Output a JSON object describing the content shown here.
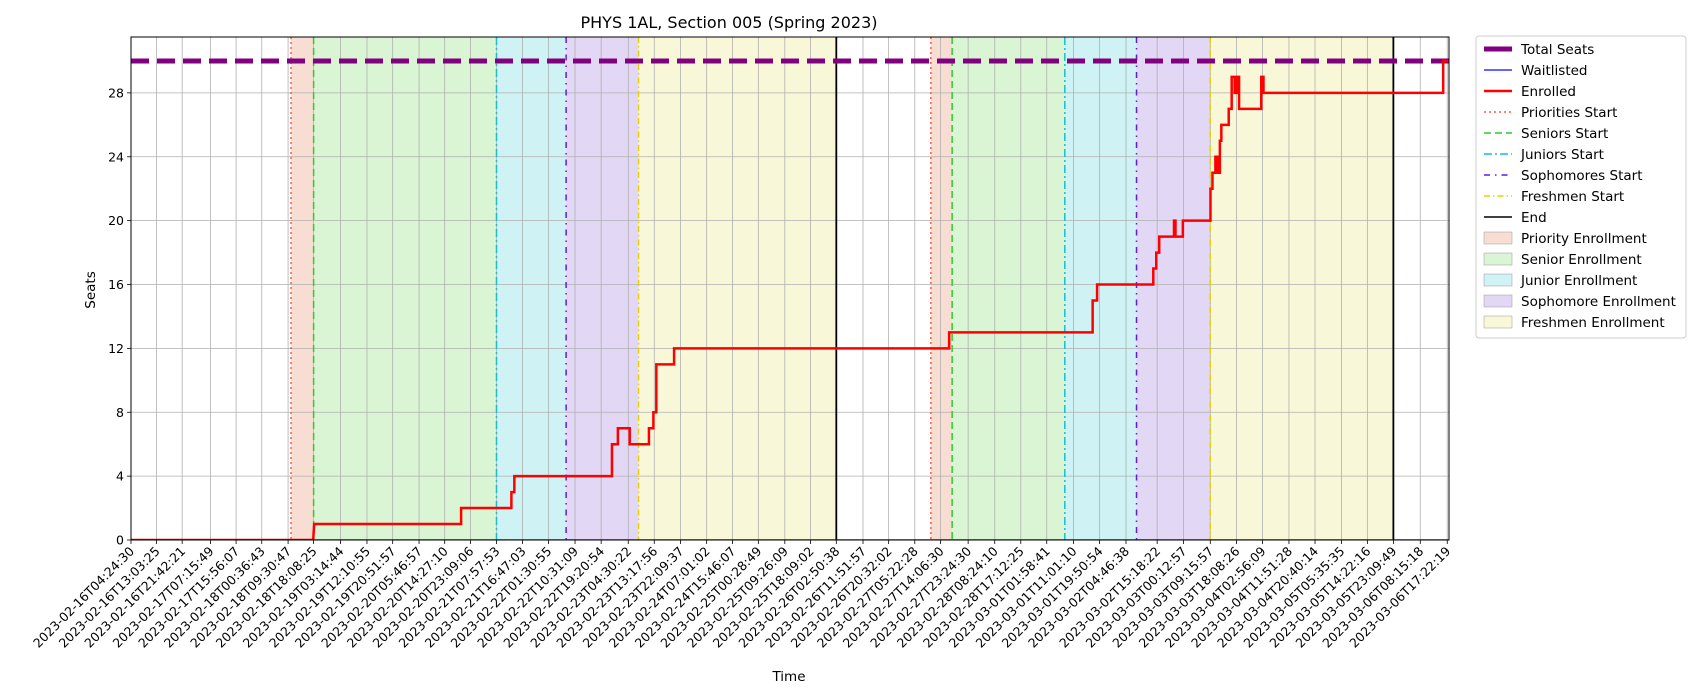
{
  "chart_data": {
    "type": "line",
    "title": "PHYS 1AL, Section 005 (Spring 2023)",
    "xlabel": "Time",
    "ylabel": "Seats",
    "ylim": [
      0,
      31.5
    ],
    "yticks": [
      0,
      4,
      8,
      12,
      16,
      20,
      24,
      28
    ],
    "grid": true,
    "legend_position": "outside-right",
    "x_start": "2023-02-16T04:24:30",
    "x_end": "2023-03-06T17:58:00",
    "x_tick_labels": [
      "2023-02-16T04:24:30",
      "2023-02-16T13:03:25",
      "2023-02-16T21:42:21",
      "2023-02-17T07:15:49",
      "2023-02-17T15:56:07",
      "2023-02-18T00:36:43",
      "2023-02-18T09:30:47",
      "2023-02-18T18:08:25",
      "2023-02-19T03:14:44",
      "2023-02-19T12:10:55",
      "2023-02-19T20:51:57",
      "2023-02-20T05:46:57",
      "2023-02-20T14:27:10",
      "2023-02-20T23:09:06",
      "2023-02-21T07:57:53",
      "2023-02-21T16:47:03",
      "2023-02-22T01:30:55",
      "2023-02-22T10:31:09",
      "2023-02-22T19:20:54",
      "2023-02-23T04:30:22",
      "2023-02-23T13:17:56",
      "2023-02-23T22:09:37",
      "2023-02-24T07:01:02",
      "2023-02-24T15:46:07",
      "2023-02-25T00:28:49",
      "2023-02-25T09:26:09",
      "2023-02-25T18:09:02",
      "2023-02-26T02:50:38",
      "2023-02-26T11:51:57",
      "2023-02-26T20:32:02",
      "2023-02-27T05:22:28",
      "2023-02-27T14:06:30",
      "2023-02-27T23:24:30",
      "2023-02-28T08:24:10",
      "2023-02-28T17:12:25",
      "2023-03-01T01:58:41",
      "2023-03-01T11:01:10",
      "2023-03-01T19:50:54",
      "2023-03-02T04:46:38",
      "2023-03-02T15:18:22",
      "2023-03-03T00:12:57",
      "2023-03-03T09:15:57",
      "2023-03-03T18:08:26",
      "2023-03-04T02:56:09",
      "2023-03-04T11:51:28",
      "2023-03-04T20:40:14",
      "2023-03-05T05:35:35",
      "2023-03-05T14:22:16",
      "2023-03-05T23:09:49",
      "2023-03-06T08:15:18",
      "2023-03-06T17:22:19"
    ],
    "shaded_regions": [
      {
        "label": "Priority Enrollment",
        "color": "#f8ddd2",
        "ranges": [
          [
            "2023-02-18T10:30:00",
            "2023-02-18T18:08:25"
          ],
          [
            "2023-02-27T10:48:00",
            "2023-02-27T18:00:00"
          ]
        ]
      },
      {
        "label": "Senior Enrollment",
        "color": "#d9f5d3",
        "ranges": [
          [
            "2023-02-18T18:08:25",
            "2023-02-21T07:57:53"
          ],
          [
            "2023-02-27T18:00:00",
            "2023-03-01T08:05:00"
          ]
        ]
      },
      {
        "label": "Junior Enrollment",
        "color": "#cff2f4",
        "ranges": [
          [
            "2023-02-21T07:57:53",
            "2023-02-22T07:30:00"
          ],
          [
            "2023-03-01T08:05:00",
            "2023-03-02T08:20:00"
          ]
        ]
      },
      {
        "label": "Sophomore Enrollment",
        "color": "#e2d7f4",
        "ranges": [
          [
            "2023-02-22T07:30:00",
            "2023-02-23T08:00:00"
          ],
          [
            "2023-03-02T08:20:00",
            "2023-03-03T09:15:57"
          ]
        ]
      },
      {
        "label": "Freshmen Enrollment",
        "color": "#f8f8d8",
        "ranges": [
          [
            "2023-02-23T08:00:00",
            "2023-02-26T02:50:38"
          ],
          [
            "2023-03-03T09:15:57",
            "2023-03-05T23:09:49"
          ]
        ]
      }
    ],
    "vertical_lines": [
      {
        "label": "Priorities Start",
        "color": "#ff5a3c",
        "dash": "2,3",
        "x": [
          "2023-02-18T10:30:00",
          "2023-02-27T10:48:00"
        ]
      },
      {
        "label": "Seniors Start",
        "color": "#2ecc2e",
        "dash": "7,4",
        "x": [
          "2023-02-18T18:08:25",
          "2023-02-27T18:00:00"
        ]
      },
      {
        "label": "Juniors Start",
        "color": "#17becf",
        "dash": "8,3,2,3",
        "x": [
          "2023-02-21T07:57:53",
          "2023-03-01T08:05:00"
        ]
      },
      {
        "label": "Sophomores Start",
        "color": "#5a1ee6",
        "dash": "6,5,1.5,5",
        "x": [
          "2023-02-22T07:30:00",
          "2023-03-02T08:20:00"
        ]
      },
      {
        "label": "Freshmen Start",
        "color": "#e6d200",
        "dash": "6,3,1.5,3",
        "x": [
          "2023-02-23T08:00:00",
          "2023-03-03T09:15:57"
        ]
      },
      {
        "label": "End",
        "color": "#000000",
        "dash": "",
        "x": [
          "2023-02-26T02:50:38",
          "2023-03-05T23:09:49"
        ]
      }
    ],
    "series": [
      {
        "name": "Total Seats",
        "color": "#800080",
        "style": "dashed-thick",
        "points": [
          [
            "2023-02-16T04:24:30",
            30
          ],
          [
            "2023-03-06T17:58:00",
            30
          ]
        ]
      },
      {
        "name": "Waitlisted",
        "color": "#3030ff",
        "style": "solid-thin",
        "points": [
          [
            "2023-02-16T04:24:30",
            0
          ],
          [
            "2023-03-06T17:58:00",
            0
          ]
        ]
      },
      {
        "name": "Enrolled",
        "color": "#ff0000",
        "style": "step",
        "points": [
          [
            "2023-02-16T04:24:30",
            0
          ],
          [
            "2023-02-18T18:00:00",
            0
          ],
          [
            "2023-02-18T18:20:00",
            1
          ],
          [
            "2023-02-20T20:00:00",
            1
          ],
          [
            "2023-02-20T20:00:00",
            2
          ],
          [
            "2023-02-21T13:00:00",
            2
          ],
          [
            "2023-02-21T13:00:00",
            3
          ],
          [
            "2023-02-21T14:00:00",
            3
          ],
          [
            "2023-02-21T14:00:00",
            4
          ],
          [
            "2023-02-22T23:00:00",
            4
          ],
          [
            "2023-02-22T23:00:00",
            6
          ],
          [
            "2023-02-23T01:00:00",
            6
          ],
          [
            "2023-02-23T01:00:00",
            7
          ],
          [
            "2023-02-23T05:00:00",
            7
          ],
          [
            "2023-02-23T05:00:00",
            6
          ],
          [
            "2023-02-23T11:30:00",
            6
          ],
          [
            "2023-02-23T11:30:00",
            7
          ],
          [
            "2023-02-23T13:00:00",
            7
          ],
          [
            "2023-02-23T13:00:00",
            8
          ],
          [
            "2023-02-23T14:00:00",
            8
          ],
          [
            "2023-02-23T14:00:00",
            11
          ],
          [
            "2023-02-23T20:00:00",
            11
          ],
          [
            "2023-02-23T20:00:00",
            12
          ],
          [
            "2023-02-27T17:00:00",
            12
          ],
          [
            "2023-02-27T17:00:00",
            13
          ],
          [
            "2023-03-01T17:30:00",
            13
          ],
          [
            "2023-03-01T17:30:00",
            15
          ],
          [
            "2023-03-01T19:00:00",
            15
          ],
          [
            "2023-03-01T19:00:00",
            16
          ],
          [
            "2023-03-02T14:00:00",
            16
          ],
          [
            "2023-03-02T14:00:00",
            17
          ],
          [
            "2023-03-02T15:00:00",
            17
          ],
          [
            "2023-03-02T15:00:00",
            18
          ],
          [
            "2023-03-02T16:00:00",
            18
          ],
          [
            "2023-03-02T16:00:00",
            19
          ],
          [
            "2023-03-02T21:00:00",
            19
          ],
          [
            "2023-03-02T21:00:00",
            20
          ],
          [
            "2023-03-02T21:30:00",
            20
          ],
          [
            "2023-03-02T21:30:00",
            19
          ],
          [
            "2023-03-03T00:00:00",
            19
          ],
          [
            "2023-03-03T00:00:00",
            20
          ],
          [
            "2023-03-03T09:20:00",
            20
          ],
          [
            "2023-03-03T09:20:00",
            22
          ],
          [
            "2023-03-03T10:00:00",
            22
          ],
          [
            "2023-03-03T10:00:00",
            23
          ],
          [
            "2023-03-03T11:00:00",
            23
          ],
          [
            "2023-03-03T11:00:00",
            24
          ],
          [
            "2023-03-03T11:45:00",
            24
          ],
          [
            "2023-03-03T11:45:00",
            23
          ],
          [
            "2023-03-03T12:30:00",
            23
          ],
          [
            "2023-03-03T12:30:00",
            25
          ],
          [
            "2023-03-03T13:00:00",
            25
          ],
          [
            "2023-03-03T13:00:00",
            26
          ],
          [
            "2023-03-03T15:30:00",
            26
          ],
          [
            "2023-03-03T15:30:00",
            27
          ],
          [
            "2023-03-03T16:30:00",
            27
          ],
          [
            "2023-03-03T16:30:00",
            29
          ],
          [
            "2023-03-03T17:30:00",
            29
          ],
          [
            "2023-03-03T17:30:00",
            28
          ],
          [
            "2023-03-03T18:15:00",
            28
          ],
          [
            "2023-03-03T18:15:00",
            29
          ],
          [
            "2023-03-03T19:00:00",
            29
          ],
          [
            "2023-03-03T19:00:00",
            27
          ],
          [
            "2023-03-04T02:30:00",
            27
          ],
          [
            "2023-03-04T02:30:00",
            29
          ],
          [
            "2023-03-04T03:15:00",
            29
          ],
          [
            "2023-03-04T03:15:00",
            28
          ],
          [
            "2023-03-06T16:00:00",
            28
          ],
          [
            "2023-03-06T16:00:00",
            30
          ],
          [
            "2023-03-06T17:58:00",
            30
          ]
        ]
      }
    ],
    "legend": [
      {
        "label": "Total Seats",
        "kind": "line",
        "color": "#800080",
        "dash": "",
        "width": 5
      },
      {
        "label": "Waitlisted",
        "kind": "line",
        "color": "#3030ff",
        "dash": "",
        "width": 1.5
      },
      {
        "label": "Enrolled",
        "kind": "line",
        "color": "#ff0000",
        "dash": "",
        "width": 2.5
      },
      {
        "label": "Priorities Start",
        "kind": "line",
        "color": "#ff5a3c",
        "dash": "2,3",
        "width": 1.5
      },
      {
        "label": "Seniors Start",
        "kind": "line",
        "color": "#2ecc2e",
        "dash": "7,4",
        "width": 1.5
      },
      {
        "label": "Juniors Start",
        "kind": "line",
        "color": "#17becf",
        "dash": "8,3,2,3",
        "width": 1.5
      },
      {
        "label": "Sophomores Start",
        "kind": "line",
        "color": "#5a1ee6",
        "dash": "6,5,1.5,5",
        "width": 1.5
      },
      {
        "label": "Freshmen Start",
        "kind": "line",
        "color": "#e6d200",
        "dash": "6,3,1.5,3",
        "width": 1.5
      },
      {
        "label": "End",
        "kind": "line",
        "color": "#000000",
        "dash": "",
        "width": 1.5
      },
      {
        "label": "Priority Enrollment",
        "kind": "patch",
        "color": "#f8ddd2"
      },
      {
        "label": "Senior Enrollment",
        "kind": "patch",
        "color": "#d9f5d3"
      },
      {
        "label": "Junior Enrollment",
        "kind": "patch",
        "color": "#cff2f4"
      },
      {
        "label": "Sophomore Enrollment",
        "kind": "patch",
        "color": "#e2d7f4"
      },
      {
        "label": "Freshmen Enrollment",
        "kind": "patch",
        "color": "#f8f8d8"
      }
    ]
  }
}
